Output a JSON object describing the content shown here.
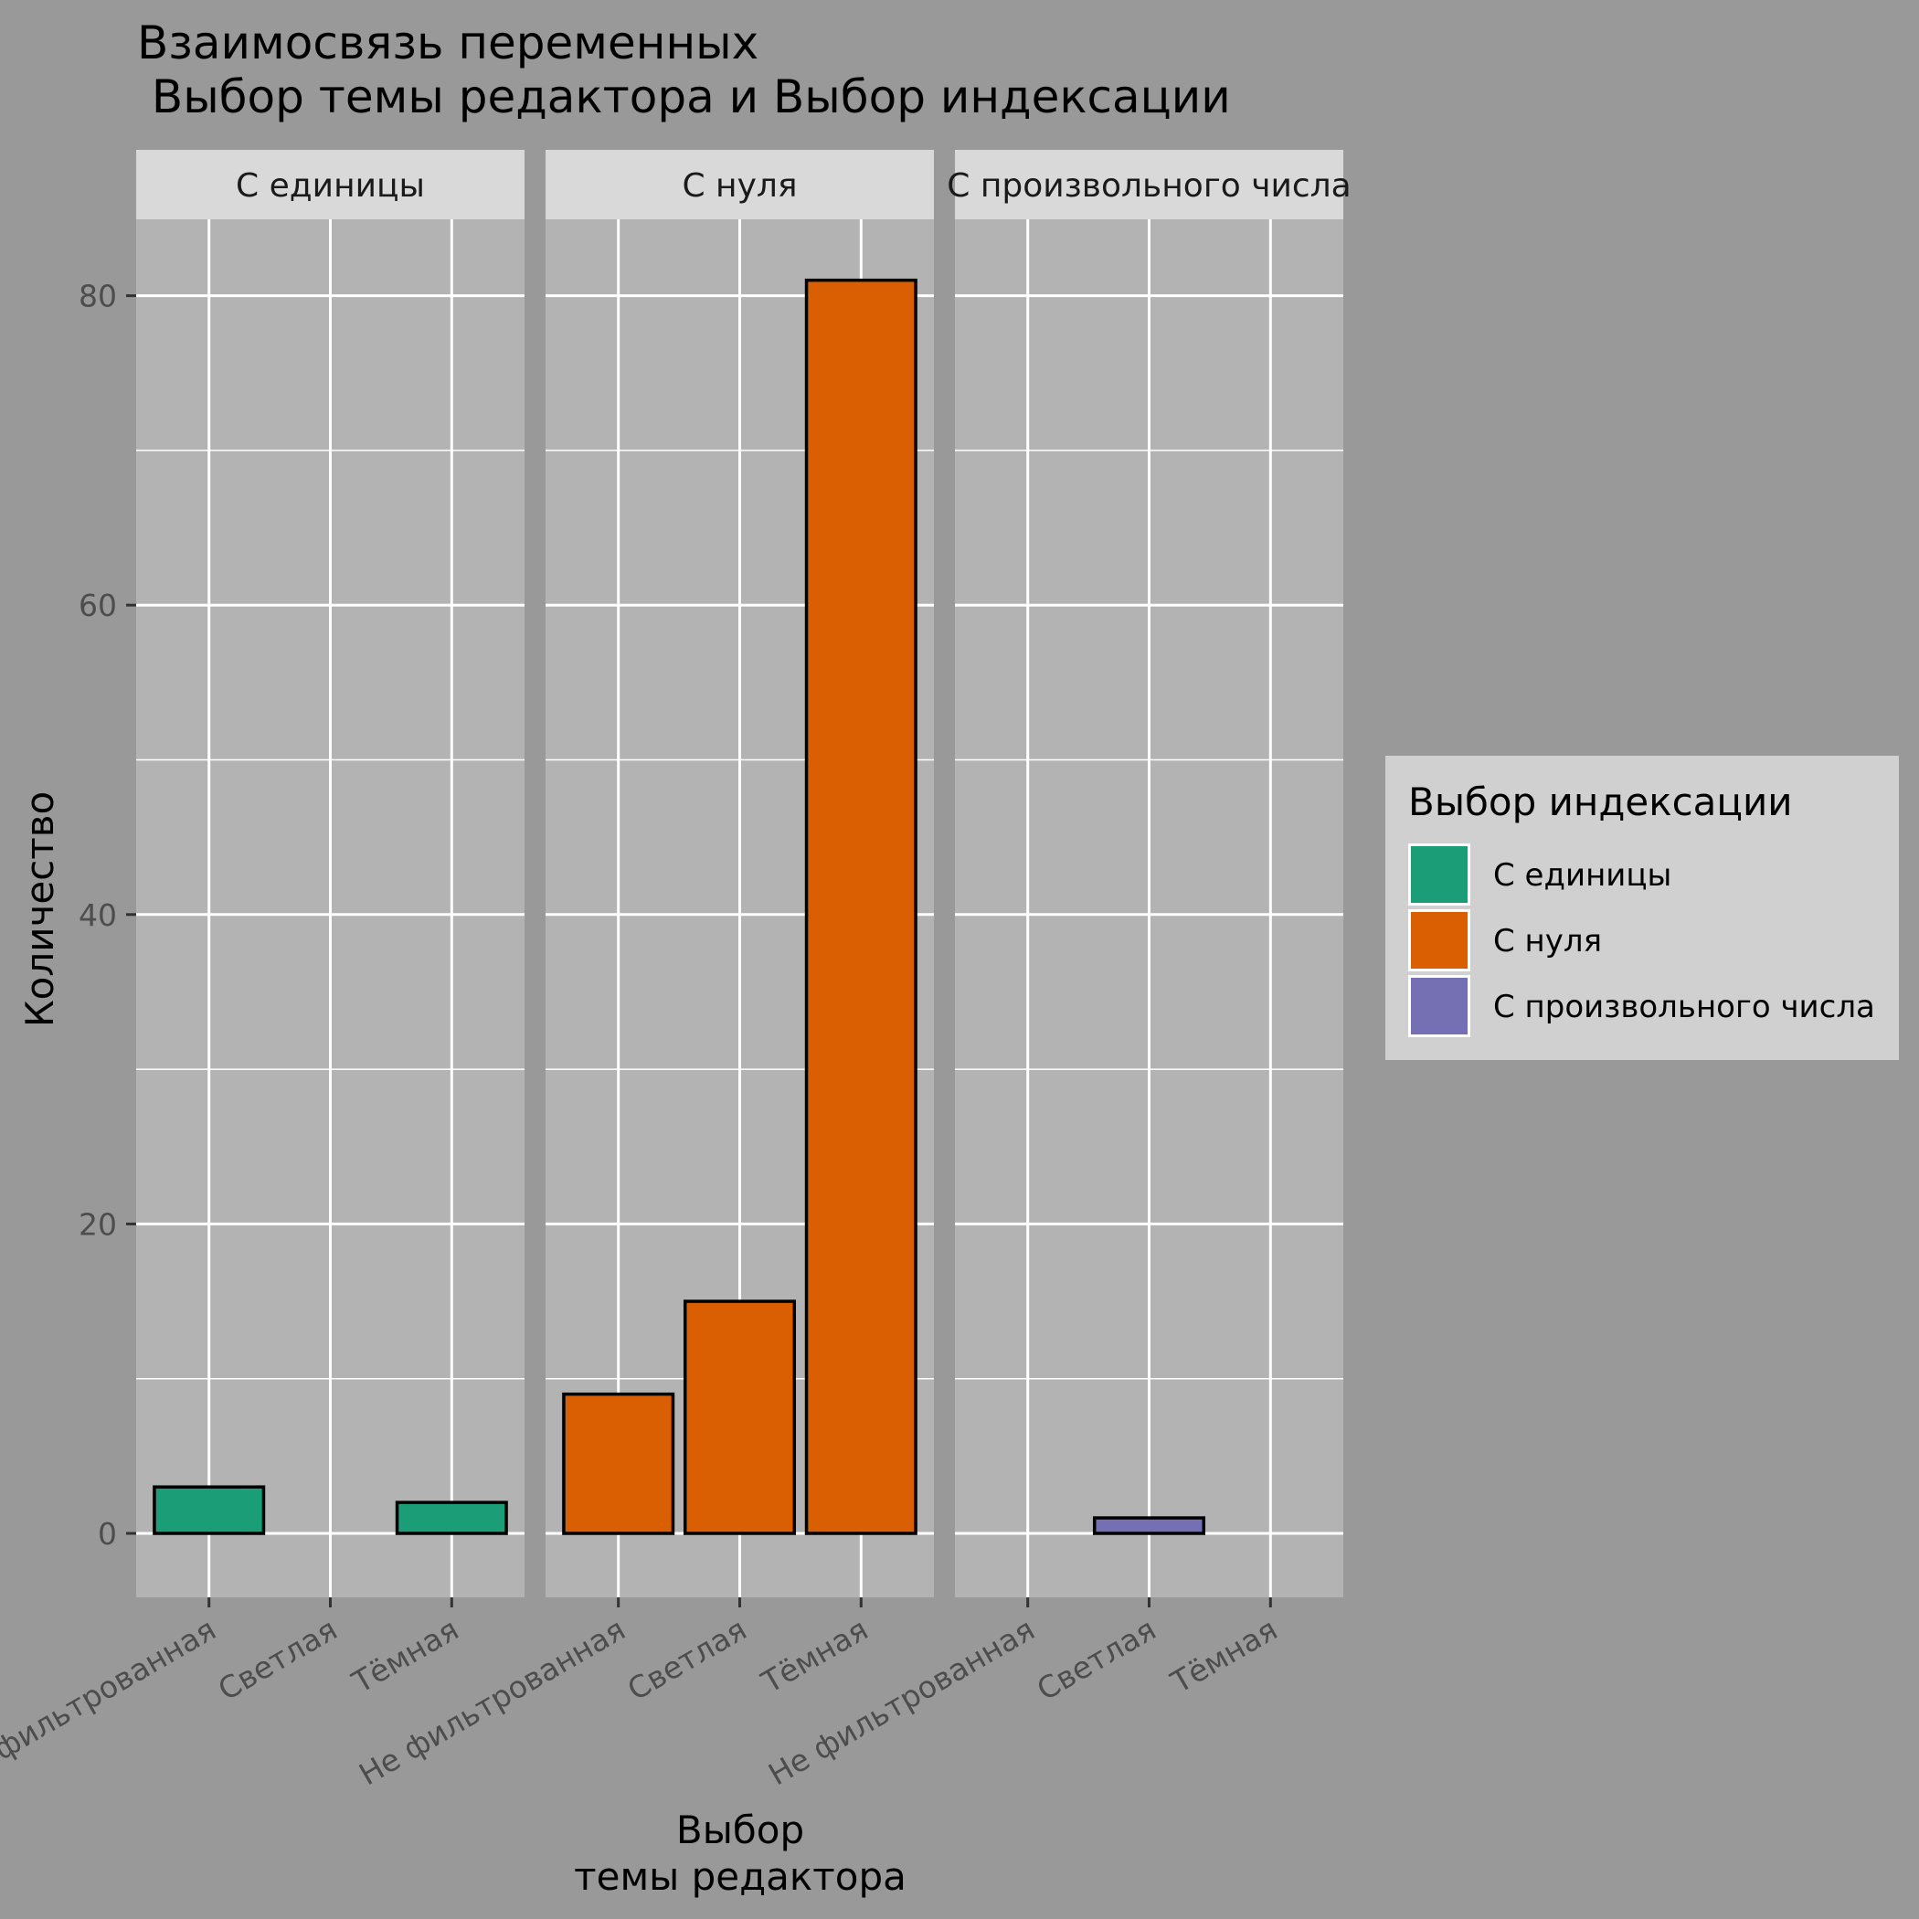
{
  "chart_data": {
    "type": "bar",
    "title_lines": [
      "Взаимосвязь переменных",
      " Выбор темы редактора и Выбор индексации"
    ],
    "xlabel_lines": [
      "Выбор",
      "темы редактора"
    ],
    "ylabel": "Количество",
    "ylim": [
      -4,
      85
    ],
    "yticks": [
      0,
      20,
      40,
      60,
      80
    ],
    "grid": true,
    "categories": [
      "Не фильтрованная",
      "Светлая",
      "Тёмная"
    ],
    "facets": [
      {
        "name": "С единицы",
        "color": "#1B9E77",
        "values": [
          3,
          0,
          2
        ]
      },
      {
        "name": "С нуля",
        "color": "#D95F02",
        "values": [
          9,
          15,
          81
        ]
      },
      {
        "name": "С произвольного числа",
        "color": "#7570B3",
        "values": [
          0,
          1,
          0
        ]
      }
    ],
    "legend": {
      "title": "Выбор индексации",
      "position": "right",
      "items": [
        {
          "label": "С единицы",
          "color": "#1B9E77"
        },
        {
          "label": "С нуля",
          "color": "#D95F02"
        },
        {
          "label": "С произвольного числа",
          "color": "#7570B3"
        }
      ]
    }
  }
}
